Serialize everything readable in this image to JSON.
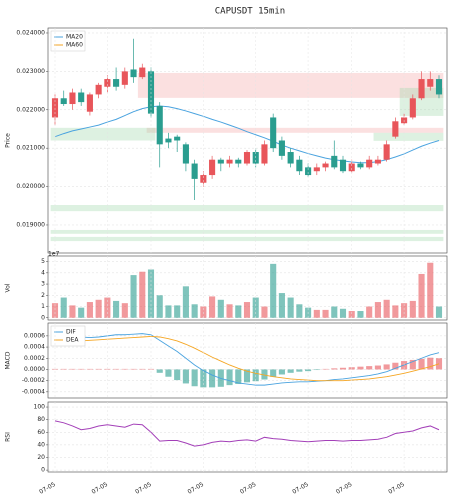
{
  "chart_data": [
    {
      "type": "candlestick",
      "title": "CAPUSDT  15min",
      "y_label": "Price",
      "up_color": "#e8555a",
      "down_color": "#2a9d8f",
      "open": [
        0.0218,
        0.0223,
        0.02215,
        0.02245,
        0.02195,
        0.0224,
        0.0226,
        0.0228,
        0.02265,
        0.02305,
        0.02285,
        0.023,
        0.0221,
        0.02125,
        0.0213,
        0.0211,
        0.0206,
        0.0201,
        0.0203,
        0.0207,
        0.0206,
        0.0207,
        0.0206,
        0.0209,
        0.0206,
        0.0218,
        0.0212,
        0.0209,
        0.0207,
        0.0205,
        0.0204,
        0.0205,
        0.0208,
        0.0207,
        0.0204,
        0.0206,
        0.0205,
        0.0206,
        0.0207,
        0.0213,
        0.02165,
        0.0218,
        0.0223,
        0.0226,
        0.0228
      ],
      "high": [
        0.0224,
        0.0225,
        0.02255,
        0.02255,
        0.02245,
        0.0227,
        0.0229,
        0.0231,
        0.0231,
        0.02385,
        0.0232,
        0.0231,
        0.0222,
        0.0214,
        0.02135,
        0.02115,
        0.0207,
        0.0204,
        0.0208,
        0.02075,
        0.0208,
        0.02075,
        0.02095,
        0.021,
        0.0212,
        0.0219,
        0.0213,
        0.021,
        0.0208,
        0.0206,
        0.0206,
        0.02065,
        0.0212,
        0.0208,
        0.0207,
        0.02065,
        0.0208,
        0.0208,
        0.0212,
        0.0218,
        0.0219,
        0.0224,
        0.023,
        0.023,
        0.0229
      ],
      "low": [
        0.0216,
        0.0221,
        0.022,
        0.0221,
        0.02185,
        0.0223,
        0.02245,
        0.0225,
        0.02255,
        0.0227,
        0.0228,
        0.0218,
        0.0205,
        0.021,
        0.0209,
        0.0204,
        0.01965,
        0.02,
        0.0202,
        0.0204,
        0.0205,
        0.0205,
        0.02055,
        0.0205,
        0.02055,
        0.0209,
        0.0207,
        0.0205,
        0.0203,
        0.02025,
        0.0203,
        0.0204,
        0.02045,
        0.02035,
        0.02035,
        0.02045,
        0.02045,
        0.02055,
        0.02065,
        0.02125,
        0.0216,
        0.02175,
        0.02225,
        0.0225,
        0.0223
      ],
      "close": [
        0.0223,
        0.02215,
        0.02245,
        0.0222,
        0.0224,
        0.02265,
        0.0228,
        0.0226,
        0.023,
        0.02285,
        0.0231,
        0.0219,
        0.0211,
        0.02115,
        0.0212,
        0.0206,
        0.0202,
        0.0203,
        0.0207,
        0.0206,
        0.0207,
        0.0206,
        0.0209,
        0.0206,
        0.0211,
        0.021,
        0.0208,
        0.0206,
        0.0204,
        0.0203,
        0.0205,
        0.0206,
        0.0205,
        0.0204,
        0.0206,
        0.0205,
        0.0207,
        0.0207,
        0.0211,
        0.0217,
        0.0218,
        0.0223,
        0.0228,
        0.0228,
        0.0224
      ],
      "series": [
        {
          "name": "MA20",
          "color": "#4aa3df",
          "values": [
            0.0213,
            0.02138,
            0.02145,
            0.0215,
            0.02155,
            0.0216,
            0.02168,
            0.02175,
            0.02185,
            0.02195,
            0.02203,
            0.02208,
            0.0221,
            0.02208,
            0.02203,
            0.02197,
            0.0219,
            0.02183,
            0.02175,
            0.02168,
            0.0216,
            0.02152,
            0.02143,
            0.02135,
            0.02127,
            0.02118,
            0.02108,
            0.021,
            0.02093,
            0.02086,
            0.0208,
            0.02074,
            0.0207,
            0.02067,
            0.02064,
            0.02062,
            0.02062,
            0.02065,
            0.0207,
            0.02077,
            0.02085,
            0.02095,
            0.02105,
            0.02113,
            0.0212
          ]
        },
        {
          "name": "MA60",
          "color": "#f5a623",
          "values": [
            null,
            null,
            null,
            null,
            null,
            null,
            null,
            null,
            null,
            null,
            null,
            null,
            null,
            null,
            null,
            null,
            null,
            null,
            null,
            null,
            null,
            null,
            null,
            null,
            null,
            null,
            null,
            null,
            null,
            null,
            null,
            null,
            null,
            null,
            null,
            null,
            null,
            null,
            null,
            null,
            null,
            null,
            null,
            null,
            null
          ]
        }
      ],
      "zones": [
        {
          "low": 0.02231,
          "high": 0.02296,
          "start": 10,
          "end": 44,
          "color": "#f4a6a6"
        },
        {
          "low": 0.0214,
          "high": 0.02153,
          "start": 11,
          "end": 44,
          "color": "#f4a6a6"
        },
        {
          "low": 0.0212,
          "high": 0.02153,
          "start": 0,
          "end": 11,
          "color": "#9fd6a8"
        },
        {
          "low": 0.02119,
          "high": 0.0214,
          "start": 37,
          "end": 44,
          "color": "#9fd6a8"
        },
        {
          "low": 0.02184,
          "high": 0.02257,
          "start": 40,
          "end": 44,
          "color": "#9fd6a8"
        },
        {
          "low": 0.01936,
          "high": 0.01952,
          "start": 0,
          "end": 44,
          "color": "#9fd6a8"
        },
        {
          "low": 0.01877,
          "high": 0.01887,
          "start": 0,
          "end": 44,
          "color": "#9fd6a8"
        },
        {
          "low": 0.01858,
          "high": 0.01869,
          "start": 0,
          "end": 44,
          "color": "#9fd6a8"
        }
      ],
      "ylim": [
        0.01827,
        0.02413
      ],
      "yticks": [
        {
          "value": 0.019,
          "label": "0.019000"
        },
        {
          "value": 0.02,
          "label": "0.020000"
        },
        {
          "value": 0.021,
          "label": "0.021000"
        },
        {
          "value": 0.022,
          "label": "0.022000"
        },
        {
          "value": 0.023,
          "label": "0.023000"
        },
        {
          "value": 0.024,
          "label": "0.024000"
        }
      ],
      "grid": true,
      "legend": "upper left"
    },
    {
      "type": "bar",
      "y_label": "Vol",
      "y_offset_label": "1e7",
      "values": [
        1.3,
        1.8,
        1.1,
        0.9,
        1.4,
        1.6,
        1.8,
        1.5,
        1.3,
        3.8,
        4.1,
        4.3,
        2.0,
        1.1,
        1.1,
        2.8,
        1.2,
        1.0,
        1.9,
        1.6,
        1.2,
        1.1,
        1.4,
        1.8,
        1.0,
        4.8,
        2.2,
        1.8,
        1.2,
        0.9,
        0.7,
        0.7,
        1.0,
        0.8,
        0.6,
        0.6,
        1.0,
        1.4,
        1.6,
        1.1,
        1.3,
        1.5,
        3.9,
        4.9,
        1.0
      ],
      "ylim": [
        -0.2,
        5.5
      ],
      "yticks": [
        0,
        1,
        2,
        3,
        4,
        5
      ],
      "grid": true
    },
    {
      "type": "macd",
      "y_label": "MACD",
      "series": [
        {
          "name": "DIF",
          "color": "#4aa3df",
          "values": [
            0.00055,
            0.00057,
            0.00058,
            0.00058,
            0.00057,
            0.00058,
            0.0006,
            0.00062,
            0.00062,
            0.00063,
            0.00064,
            0.00062,
            0.00052,
            0.00042,
            0.00032,
            0.0002,
            8e-05,
            -2e-05,
            -0.0001,
            -0.00016,
            -0.0002,
            -0.00024,
            -0.00026,
            -0.00028,
            -0.00028,
            -0.00026,
            -0.00024,
            -0.00023,
            -0.00022,
            -0.00022,
            -0.00021,
            -0.0002,
            -0.00018,
            -0.00017,
            -0.00015,
            -0.00013,
            -0.00011,
            -8e-05,
            -4e-05,
            2e-05,
            8e-05,
            0.00014,
            0.0002,
            0.00026,
            0.0003
          ]
        },
        {
          "name": "DEA",
          "color": "#f5a623",
          "values": [
            0.00045,
            0.00047,
            0.00049,
            0.00051,
            0.00052,
            0.00053,
            0.00054,
            0.00055,
            0.00056,
            0.00057,
            0.00058,
            0.00059,
            0.00058,
            0.00055,
            0.00051,
            0.00045,
            0.00038,
            0.0003,
            0.00022,
            0.00015,
            8e-05,
            2e-05,
            -3e-05,
            -7e-05,
            -0.0001,
            -0.00013,
            -0.00015,
            -0.00017,
            -0.00018,
            -0.00019,
            -0.0002,
            -0.0002,
            -0.0002,
            -0.0002,
            -0.00019,
            -0.00018,
            -0.00017,
            -0.00015,
            -0.00013,
            -0.0001,
            -7e-05,
            -3e-05,
            1e-05,
            5e-05,
            0.0001
          ]
        }
      ],
      "histogram": [
        1e-05,
        1e-05,
        1e-05,
        1e-05,
        1e-05,
        1e-05,
        1e-05,
        1e-05,
        1e-05,
        1e-05,
        1e-05,
        1e-05,
        -6e-05,
        -0.00013,
        -0.00019,
        -0.00025,
        -0.0003,
        -0.00032,
        -0.00032,
        -0.00031,
        -0.00028,
        -0.00026,
        -0.00023,
        -0.00021,
        -0.00018,
        -0.00013,
        -9e-05,
        -6e-05,
        -4e-05,
        -3e-05,
        -1e-05,
        1e-05,
        2e-05,
        3e-05,
        4e-05,
        5e-05,
        6e-05,
        7e-05,
        9e-05,
        0.00012,
        0.00015,
        0.00017,
        0.00019,
        0.00021,
        0.0002
      ],
      "ylim": [
        -0.00051,
        0.00083
      ],
      "yticks": [
        -0.0004,
        -0.0002,
        {
          "value": 0,
          "label": "0.0000"
        },
        0.0002,
        0.0004,
        0.0006
      ],
      "grid": true,
      "legend": "upper left"
    },
    {
      "type": "line",
      "y_label": "RSI",
      "color": "#a33fb8",
      "categories": [
        "07-05",
        null,
        null,
        null,
        null,
        null,
        "07-05",
        null,
        null,
        null,
        null,
        "07-05",
        null,
        null,
        null,
        null,
        null,
        "07-05",
        null,
        null,
        null,
        null,
        null,
        "07-05",
        null,
        null,
        null,
        null,
        null,
        "07-05",
        null,
        null,
        null,
        null,
        "07-05",
        null,
        null,
        null,
        null,
        null,
        "07-05",
        null,
        null,
        null,
        null
      ],
      "values": [
        78,
        75,
        70,
        64,
        66,
        70,
        72,
        70,
        68,
        73,
        72,
        60,
        46,
        47,
        47,
        43,
        38,
        40,
        44,
        46,
        45,
        47,
        48,
        46,
        52,
        50,
        49,
        47,
        46,
        45,
        46,
        47,
        47,
        46,
        47,
        47,
        48,
        49,
        52,
        58,
        60,
        62,
        67,
        70,
        64
      ],
      "ylim": [
        -3,
        108
      ],
      "yticks": [
        0,
        20,
        40,
        60,
        80,
        100
      ],
      "grid": true
    }
  ]
}
